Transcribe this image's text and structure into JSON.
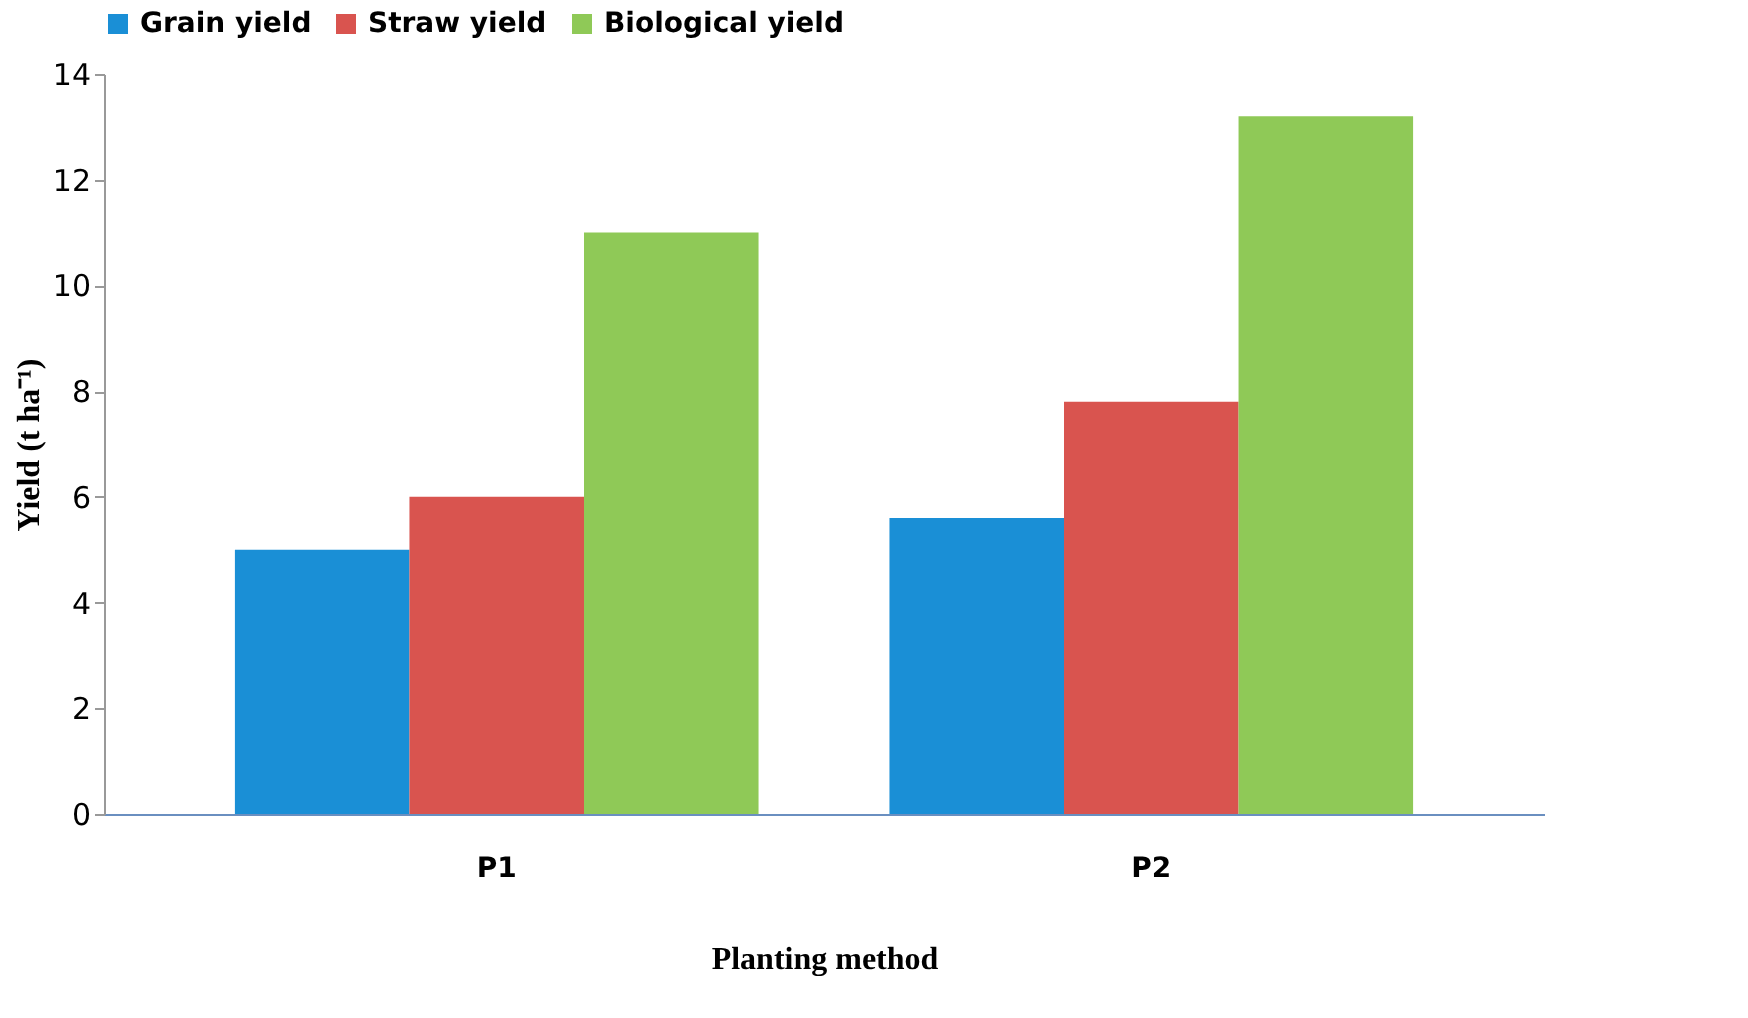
{
  "chart_data": {
    "type": "bar",
    "xlabel": "Planting method",
    "ylabel": "Yield (t ha⁻¹)",
    "categories": [
      "P1",
      "P2"
    ],
    "series": [
      {
        "name": "Grain yield",
        "color": "#1a8fd6",
        "values": [
          5.0,
          5.6
        ]
      },
      {
        "name": "Straw yield",
        "color": "#d9544f",
        "values": [
          6.0,
          7.8
        ]
      },
      {
        "name": "Biological yield",
        "color": "#8fc957",
        "values": [
          11.0,
          13.2
        ]
      }
    ],
    "ylim": [
      0,
      14
    ],
    "yticks": [
      0,
      2,
      4,
      6,
      8,
      10,
      12,
      14
    ],
    "grid": false,
    "legend": "top"
  }
}
